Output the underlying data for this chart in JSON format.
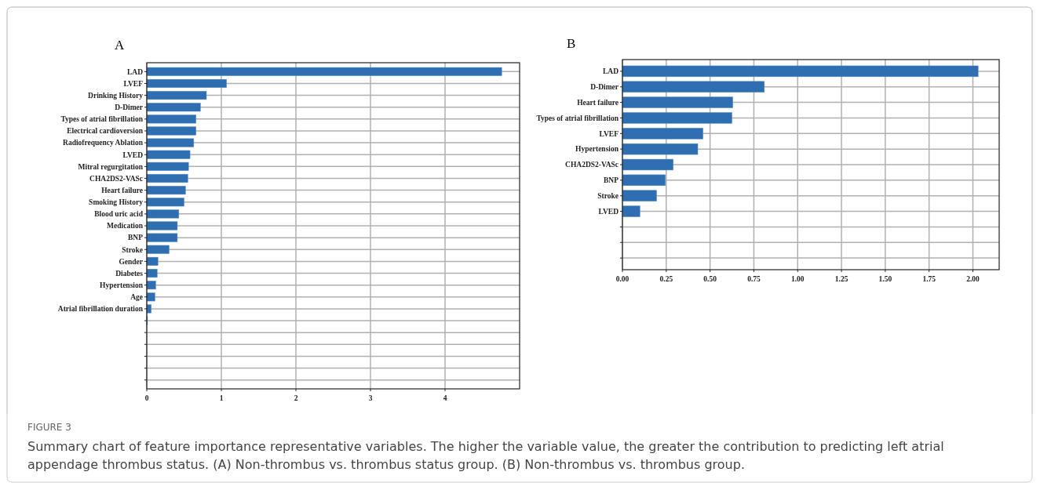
{
  "chart_data": [
    {
      "type": "bar",
      "orientation": "horizontal",
      "title": "A",
      "categories": [
        "LAD",
        "LVEF",
        "Drinking History",
        "D-Dimer",
        "Types of atrial fibrillation",
        "Electrical cardioversion",
        "Radiofrequency Ablation",
        "LVED",
        "Mitral regurgitation",
        "CHA2DS2-VASc",
        "Heart failure",
        "Smoking History",
        "Blood uric acid",
        "Medication",
        "BNP",
        "Stroke",
        "Gender",
        "Diabetes",
        "Hypertension",
        "Age",
        "Atrial fibrillation duration",
        null,
        null,
        null,
        null,
        null,
        null
      ],
      "values": [
        4.76,
        1.07,
        0.8,
        0.72,
        0.66,
        0.66,
        0.63,
        0.58,
        0.56,
        0.55,
        0.52,
        0.5,
        0.43,
        0.41,
        0.41,
        0.3,
        0.15,
        0.14,
        0.12,
        0.11,
        0.06,
        0.01,
        0,
        0,
        0,
        0,
        0
      ],
      "color": "#2f6eb0",
      "xlim": [
        0,
        5
      ],
      "xticks": [
        0,
        1,
        2,
        3,
        4
      ],
      "grid": true,
      "annotations": [
        "FIGURE 3",
        "Summary chart of feature importance representative variables. The higher the variable value, the greater the contribution to predicting left atrial appendage thrombus status. (A) Non-thrombus vs. thrombus status group. (B) Non-thrombus vs. thrombus group."
      ]
    },
    {
      "type": "bar",
      "orientation": "horizontal",
      "title": "B",
      "categories": [
        "LAD",
        "D-Dimer",
        "Heart failure",
        "Types of atrial fibrillation",
        "LVEF",
        "Hypertension",
        "CHA2DS2-VASc",
        "BNP",
        "Stroke",
        "LVED",
        null,
        null,
        null
      ],
      "values": [
        2.03,
        0.81,
        0.63,
        0.625,
        0.46,
        0.43,
        0.29,
        0.245,
        0.195,
        0.1,
        0,
        0,
        0
      ],
      "color": "#2f6eb0",
      "xlim": [
        0,
        2.15
      ],
      "xticks": [
        {
          "value": 0,
          "label": "0.00"
        },
        {
          "value": 0.25,
          "label": "0.25"
        },
        {
          "value": 0.5,
          "label": "0.50"
        },
        {
          "value": 0.75,
          "label": "0.75"
        },
        {
          "value": 1,
          "label": "1.00"
        },
        {
          "value": 1.25,
          "label": "1.25"
        },
        {
          "value": 1.5,
          "label": "1.50"
        },
        {
          "value": 1.75,
          "label": "1.75"
        },
        {
          "value": 2,
          "label": "2.00"
        }
      ],
      "grid": true
    }
  ]
}
